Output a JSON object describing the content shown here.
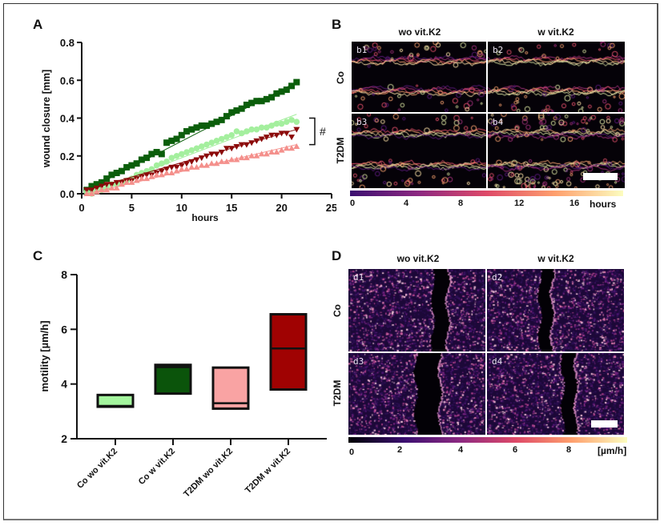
{
  "panels": {
    "A": {
      "letter": "A"
    },
    "B": {
      "letter": "B",
      "col_headers": [
        "wo vit.K2",
        "w vit.K2"
      ],
      "row_headers": [
        "Co",
        "T2DM"
      ],
      "tiles": [
        "b1",
        "b2",
        "b3",
        "b4"
      ],
      "colorbar": {
        "ticks": [
          "0",
          "4",
          "8",
          "12",
          "16"
        ],
        "unit": "hours",
        "colormap": "magma/inferno (purple to pale yellow)",
        "stops": [
          "#3b0f70",
          "#8c2981",
          "#de4968",
          "#fe9f6d",
          "#fcfdbf"
        ]
      }
    },
    "C": {
      "letter": "C"
    },
    "D": {
      "letter": "D",
      "col_headers": [
        "wo vit.K2",
        "w vit.K2"
      ],
      "row_headers": [
        "Co",
        "T2DM"
      ],
      "tiles": [
        "d1",
        "d2",
        "d3",
        "d4"
      ],
      "colorbar": {
        "ticks": [
          "0",
          "2",
          "4",
          "6",
          "8"
        ],
        "unit": "[µm/h]",
        "colormap": "magma (black to pale yellow)",
        "stops": [
          "#000004",
          "#3b0f70",
          "#8c2981",
          "#de4968",
          "#fe9f6d",
          "#fcfdbf"
        ]
      }
    }
  },
  "chart_data": [
    {
      "id": "A",
      "type": "scatter",
      "title": "",
      "xlabel": "hours",
      "ylabel": "wound closure [mm]",
      "xlim": [
        0,
        25
      ],
      "ylim": [
        0,
        0.8
      ],
      "xticks": [
        "0",
        "5",
        "10",
        "15",
        "20",
        "25"
      ],
      "yticks": [
        "0.0",
        "0.2",
        "0.4",
        "0.6",
        "0.8"
      ],
      "grid": false,
      "annotation": {
        "text": "#",
        "bracket_range_y": [
          0.26,
          0.4
        ]
      },
      "series": [
        {
          "name": "Co w vit.K2",
          "marker": "square",
          "color": "#0b5e0b",
          "fit_line": {
            "x": [
              0.5,
              21.5
            ],
            "y": [
              0.02,
              0.59
            ]
          },
          "x": [
            0.5,
            1,
            1.5,
            2,
            2.5,
            3,
            3.5,
            4,
            4.5,
            5,
            5.5,
            6,
            6.5,
            7,
            7.5,
            8,
            8.5,
            9,
            9.5,
            10,
            10.5,
            11,
            11.5,
            12,
            12.5,
            13,
            13.5,
            14,
            14.5,
            15,
            15.5,
            16,
            16.5,
            17,
            17.5,
            18,
            18.5,
            19,
            19.5,
            20,
            20.5,
            21,
            21.5
          ],
          "y": [
            0.02,
            0.04,
            0.05,
            0.06,
            0.08,
            0.1,
            0.11,
            0.12,
            0.14,
            0.15,
            0.16,
            0.18,
            0.19,
            0.21,
            0.22,
            0.21,
            0.27,
            0.28,
            0.29,
            0.31,
            0.33,
            0.34,
            0.35,
            0.36,
            0.36,
            0.37,
            0.38,
            0.39,
            0.41,
            0.43,
            0.44,
            0.45,
            0.47,
            0.48,
            0.49,
            0.49,
            0.5,
            0.51,
            0.53,
            0.54,
            0.55,
            0.57,
            0.59
          ]
        },
        {
          "name": "Co wo vit.K2",
          "marker": "circle",
          "color": "#a4ef9e",
          "fit_line": {
            "x": [
              0.5,
              21.5
            ],
            "y": [
              0.0,
              0.42
            ]
          },
          "x": [
            0.5,
            1,
            1.5,
            2,
            2.5,
            3,
            3.5,
            4,
            4.5,
            5,
            5.5,
            6,
            6.5,
            7,
            7.5,
            8,
            8.5,
            9,
            9.5,
            10,
            10.5,
            11,
            11.5,
            12,
            12.5,
            13,
            13.5,
            14,
            14.5,
            15,
            15.5,
            16,
            16.5,
            17,
            17.5,
            18,
            18.5,
            19,
            19.5,
            20,
            20.5,
            21,
            21.5
          ],
          "y": [
            0.01,
            0.0,
            0.02,
            0.02,
            0.03,
            0.05,
            0.05,
            0.06,
            0.07,
            0.08,
            0.1,
            0.11,
            0.12,
            0.13,
            0.15,
            0.16,
            0.17,
            0.19,
            0.2,
            0.21,
            0.22,
            0.23,
            0.24,
            0.25,
            0.26,
            0.27,
            0.28,
            0.29,
            0.3,
            0.31,
            0.33,
            0.32,
            0.33,
            0.34,
            0.34,
            0.35,
            0.35,
            0.36,
            0.37,
            0.37,
            0.38,
            0.39,
            0.38
          ]
        },
        {
          "name": "T2DM w vit.K2",
          "marker": "triangle-down",
          "color": "#8b0a0a",
          "fit_line": {
            "x": [
              0.5,
              21.5
            ],
            "y": [
              0.02,
              0.34
            ]
          },
          "x": [
            0.5,
            1,
            1.5,
            2,
            2.5,
            3,
            3.5,
            4,
            4.5,
            5,
            5.5,
            6,
            6.5,
            7,
            7.5,
            8,
            8.5,
            9,
            9.5,
            10,
            10.5,
            11,
            11.5,
            12,
            12.5,
            13,
            13.5,
            14,
            14.5,
            15,
            15.5,
            16,
            16.5,
            17,
            17.5,
            18,
            18.5,
            19,
            19.5,
            20,
            20.5,
            21,
            21.5
          ],
          "y": [
            0.02,
            0.02,
            0.03,
            0.04,
            0.05,
            0.05,
            0.06,
            0.06,
            0.07,
            0.07,
            0.08,
            0.09,
            0.1,
            0.1,
            0.11,
            0.12,
            0.13,
            0.14,
            0.14,
            0.15,
            0.16,
            0.17,
            0.18,
            0.19,
            0.2,
            0.21,
            0.21,
            0.22,
            0.24,
            0.24,
            0.25,
            0.26,
            0.26,
            0.27,
            0.28,
            0.29,
            0.3,
            0.31,
            0.31,
            0.32,
            0.32,
            0.3,
            0.34
          ]
        },
        {
          "name": "T2DM wo vit.K2",
          "marker": "triangle-up",
          "color": "#f4908c",
          "fit_line": {
            "x": [
              0.5,
              21.5
            ],
            "y": [
              0.0,
              0.26
            ]
          },
          "x": [
            0.5,
            1,
            1.5,
            2,
            2.5,
            3,
            3.5,
            4,
            4.5,
            5,
            5.5,
            6,
            6.5,
            7,
            7.5,
            8,
            8.5,
            9,
            9.5,
            10,
            10.5,
            11,
            11.5,
            12,
            12.5,
            13,
            13.5,
            14,
            14.5,
            15,
            15.5,
            16,
            16.5,
            17,
            17.5,
            18,
            18.5,
            19,
            19.5,
            20,
            20.5,
            21,
            21.5
          ],
          "y": [
            0.0,
            0.0,
            0.01,
            0.02,
            0.02,
            0.03,
            0.03,
            0.05,
            0.06,
            0.06,
            0.07,
            0.08,
            0.08,
            0.09,
            0.1,
            0.1,
            0.11,
            0.11,
            0.12,
            0.13,
            0.13,
            0.14,
            0.14,
            0.15,
            0.15,
            0.16,
            0.16,
            0.17,
            0.17,
            0.18,
            0.18,
            0.19,
            0.19,
            0.2,
            0.2,
            0.21,
            0.21,
            0.22,
            0.22,
            0.23,
            0.24,
            0.24,
            0.25
          ]
        }
      ]
    },
    {
      "id": "C",
      "type": "bar",
      "subtype": "floating-box",
      "title": "",
      "xlabel": "",
      "ylabel": "motility [µm/h]",
      "ylim": [
        2,
        8
      ],
      "yticks": [
        "2",
        "4",
        "6",
        "8"
      ],
      "grid": false,
      "categories": [
        "Co wo vit.K2",
        "Co w vit.K2",
        "T2DM wo vit.K2",
        "T2DM w vit.K2"
      ],
      "boxes": [
        {
          "low": 3.17,
          "high": 3.6,
          "median": 3.2,
          "color": "#a4f59e"
        },
        {
          "low": 3.65,
          "high": 4.7,
          "median": 4.62,
          "color": "#0b540b"
        },
        {
          "low": 3.1,
          "high": 4.6,
          "median": 3.3,
          "color": "#f9a3a3"
        },
        {
          "low": 3.8,
          "high": 6.55,
          "median": 5.3,
          "color": "#a00202"
        }
      ]
    }
  ]
}
